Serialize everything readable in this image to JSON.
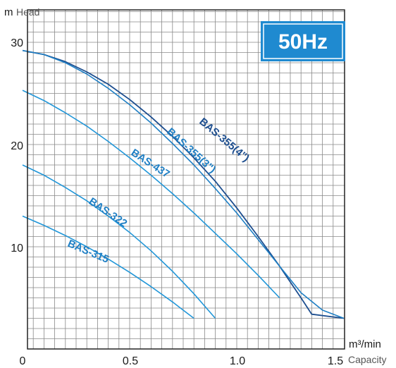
{
  "chart_data": {
    "type": "line",
    "badge": "50Hz",
    "xlabel": "Capacity",
    "xunit": "m³/min",
    "ylabel": "Head",
    "yunit": "m",
    "xlim": [
      0,
      1.5
    ],
    "ylim": [
      0,
      33
    ],
    "x_ticks": [
      "0",
      "0.5",
      "1.0",
      "1.5"
    ],
    "y_ticks": [
      "10",
      "20",
      "30"
    ],
    "grid": true,
    "series": [
      {
        "name": "BAS-355(4\")",
        "color": "#1d4e8f",
        "points": [
          [
            0,
            29.2
          ],
          [
            0.1,
            28.8
          ],
          [
            0.2,
            28.1
          ],
          [
            0.3,
            27.1
          ],
          [
            0.4,
            25.9
          ],
          [
            0.5,
            24.4
          ],
          [
            0.6,
            22.7
          ],
          [
            0.7,
            20.8
          ],
          [
            0.8,
            18.7
          ],
          [
            0.9,
            16.4
          ],
          [
            1.0,
            13.8
          ],
          [
            1.1,
            11.0
          ],
          [
            1.2,
            8.1
          ],
          [
            1.3,
            5.0
          ],
          [
            1.35,
            3.4
          ],
          [
            1.5,
            3.0
          ]
        ]
      },
      {
        "name": "BAS-355(3\")",
        "color": "#1f7fc4",
        "points": [
          [
            0,
            29.2
          ],
          [
            0.1,
            28.8
          ],
          [
            0.2,
            28.0
          ],
          [
            0.3,
            26.9
          ],
          [
            0.4,
            25.5
          ],
          [
            0.5,
            23.9
          ],
          [
            0.6,
            22.1
          ],
          [
            0.7,
            20.1
          ],
          [
            0.8,
            18.0
          ],
          [
            0.9,
            15.7
          ],
          [
            1.0,
            13.3
          ],
          [
            1.1,
            10.7
          ],
          [
            1.2,
            8.1
          ],
          [
            1.3,
            5.5
          ],
          [
            1.4,
            3.8
          ],
          [
            1.5,
            3.0
          ]
        ]
      },
      {
        "name": "BAS-437",
        "color": "#2196d8",
        "points": [
          [
            0,
            25.3
          ],
          [
            0.1,
            24.3
          ],
          [
            0.2,
            23.1
          ],
          [
            0.3,
            21.8
          ],
          [
            0.4,
            20.3
          ],
          [
            0.5,
            18.7
          ],
          [
            0.6,
            17.0
          ],
          [
            0.7,
            15.2
          ],
          [
            0.8,
            13.3
          ],
          [
            0.9,
            11.3
          ],
          [
            1.0,
            9.3
          ],
          [
            1.1,
            7.2
          ],
          [
            1.2,
            5.0
          ]
        ]
      },
      {
        "name": "BAS-322",
        "color": "#2196d8",
        "points": [
          [
            0,
            18.0
          ],
          [
            0.1,
            17.0
          ],
          [
            0.2,
            15.8
          ],
          [
            0.3,
            14.5
          ],
          [
            0.4,
            13.0
          ],
          [
            0.5,
            11.4
          ],
          [
            0.6,
            9.6
          ],
          [
            0.7,
            7.6
          ],
          [
            0.8,
            5.4
          ],
          [
            0.9,
            3.0
          ]
        ]
      },
      {
        "name": "BAS-315",
        "color": "#2196d8",
        "points": [
          [
            0,
            13.0
          ],
          [
            0.1,
            12.1
          ],
          [
            0.2,
            11.1
          ],
          [
            0.3,
            10.0
          ],
          [
            0.4,
            8.8
          ],
          [
            0.5,
            7.5
          ],
          [
            0.6,
            6.1
          ],
          [
            0.7,
            4.6
          ],
          [
            0.8,
            3.0
          ]
        ]
      }
    ]
  }
}
